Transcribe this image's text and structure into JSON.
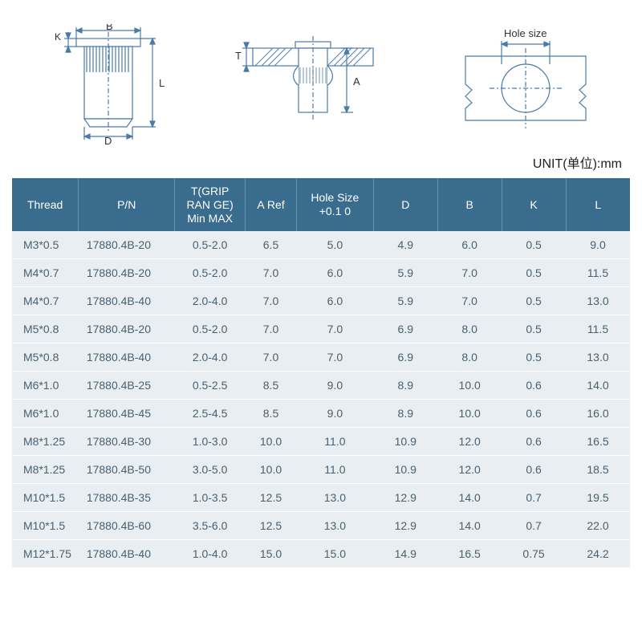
{
  "unit_label": "UNIT(单位):mm",
  "diagram_labels": {
    "K": "K",
    "B": "B",
    "D": "D",
    "L": "L",
    "T": "T",
    "A": "A",
    "hole": "Hole size"
  },
  "diagram_color": "#4a7ba8",
  "hatch_color": "#4a7ba8",
  "table": {
    "header_bg": "#3a6c8e",
    "header_fg": "#ffffff",
    "row_bg": "#e8eef2",
    "row_fg": "#4a6070",
    "columns": [
      {
        "label": "Thread"
      },
      {
        "label": "P/N"
      },
      {
        "label": "T(GRIP RAN GE) Min MAX"
      },
      {
        "label": "A Ref"
      },
      {
        "label": "Hole Size +0.1 0"
      },
      {
        "label": "D"
      },
      {
        "label": "B"
      },
      {
        "label": "K"
      },
      {
        "label": "L"
      }
    ],
    "rows": [
      [
        "M3*0.5",
        "17880.4B-20",
        "0.5-2.0",
        "6.5",
        "5.0",
        "4.9",
        "6.0",
        "0.5",
        "9.0"
      ],
      [
        "M4*0.7",
        "17880.4B-20",
        "0.5-2.0",
        "7.0",
        "6.0",
        "5.9",
        "7.0",
        "0.5",
        "11.5"
      ],
      [
        "M4*0.7",
        "17880.4B-40",
        "2.0-4.0",
        "7.0",
        "6.0",
        "5.9",
        "7.0",
        "0.5",
        "13.0"
      ],
      [
        "M5*0.8",
        "17880.4B-20",
        "0.5-2.0",
        "7.0",
        "7.0",
        "6.9",
        "8.0",
        "0.5",
        "11.5"
      ],
      [
        "M5*0.8",
        "17880.4B-40",
        "2.0-4.0",
        "7.0",
        "7.0",
        "6.9",
        "8.0",
        "0.5",
        "13.0"
      ],
      [
        "M6*1.0",
        "17880.4B-25",
        "0.5-2.5",
        "8.5",
        "9.0",
        "8.9",
        "10.0",
        "0.6",
        "14.0"
      ],
      [
        "M6*1.0",
        "17880.4B-45",
        "2.5-4.5",
        "8.5",
        "9.0",
        "8.9",
        "10.0",
        "0.6",
        "16.0"
      ],
      [
        "M8*1.25",
        "17880.4B-30",
        "1.0-3.0",
        "10.0",
        "11.0",
        "10.9",
        "12.0",
        "0.6",
        "16.5"
      ],
      [
        "M8*1.25",
        "17880.4B-50",
        "3.0-5.0",
        "10.0",
        "11.0",
        "10.9",
        "12.0",
        "0.6",
        "18.5"
      ],
      [
        "M10*1.5",
        "17880.4B-35",
        "1.0-3.5",
        "12.5",
        "13.0",
        "12.9",
        "14.0",
        "0.7",
        "19.5"
      ],
      [
        "M10*1.5",
        "17880.4B-60",
        "3.5-6.0",
        "12.5",
        "13.0",
        "12.9",
        "14.0",
        "0.7",
        "22.0"
      ],
      [
        "M12*1.75",
        "17880.4B-40",
        "1.0-4.0",
        "15.0",
        "15.0",
        "14.9",
        "16.5",
        "0.75",
        "24.2"
      ]
    ]
  }
}
